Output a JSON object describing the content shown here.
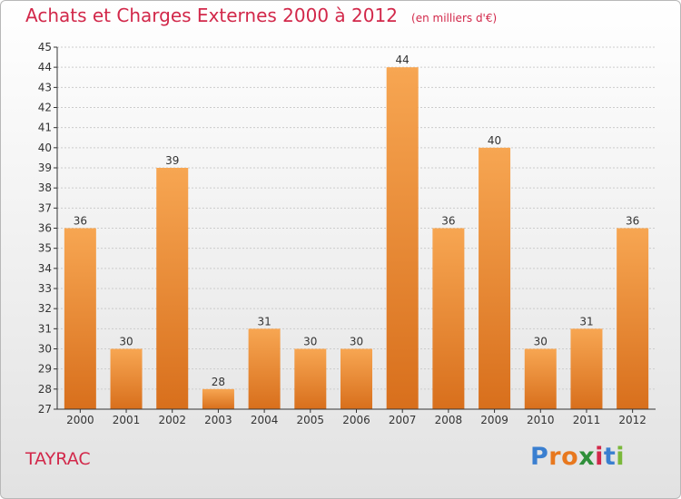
{
  "header": {
    "title": "Achats et Charges Externes 2000 à 2012",
    "unit": "(en milliers d'€)"
  },
  "footer": {
    "commune": "TAYRAC",
    "logo": {
      "letters": [
        "P",
        "r",
        "o",
        "x",
        "i",
        "t",
        "i"
      ],
      "colors": [
        "#3a7fd0",
        "#e8781e",
        "#e8781e",
        "#2f8f3a",
        "#d2284a",
        "#3a7fd0",
        "#7ab83a"
      ]
    }
  },
  "colors": {
    "title": "#d2284a",
    "bar_top": "#f7a652",
    "bar_bottom": "#d86f1c",
    "grid": "#cccccc",
    "axis": "#333333"
  },
  "chart_data": {
    "type": "bar",
    "categories": [
      "2000",
      "2001",
      "2002",
      "2003",
      "2004",
      "2005",
      "2006",
      "2007",
      "2008",
      "2009",
      "2010",
      "2011",
      "2012"
    ],
    "values": [
      36,
      30,
      39,
      28,
      31,
      30,
      30,
      44,
      36,
      40,
      30,
      31,
      36
    ],
    "title": "Achats et Charges Externes 2000 à 2012",
    "subtitle": "(en milliers d'€)",
    "xlabel": "",
    "ylabel": "",
    "ylim": [
      27,
      45
    ],
    "yticks": [
      27,
      28,
      29,
      30,
      31,
      32,
      33,
      34,
      35,
      36,
      37,
      38,
      39,
      40,
      41,
      42,
      43,
      44,
      45
    ],
    "grid": true,
    "data_labels": true
  }
}
